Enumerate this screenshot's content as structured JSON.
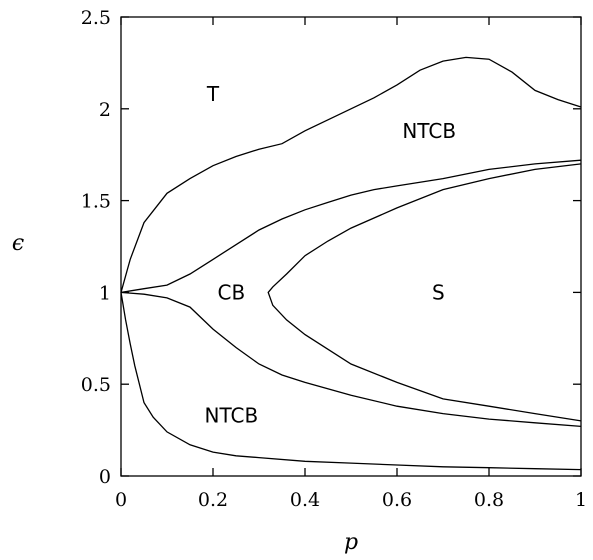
{
  "chart_data": {
    "type": "line",
    "title": "",
    "xlabel": "p",
    "ylabel": "ϵ",
    "xlim": [
      0,
      1
    ],
    "ylim": [
      0,
      2.5
    ],
    "grid": false,
    "x_ticks": [
      "0",
      "0.2",
      "0.4",
      "0.6",
      "0.8",
      "1"
    ],
    "y_ticks": [
      "0",
      "0.5",
      "1",
      "1.5",
      "2",
      "2.5"
    ],
    "x_tick_values": [
      0,
      0.2,
      0.4,
      0.6,
      0.8,
      1
    ],
    "y_tick_values": [
      0,
      0.5,
      1,
      1.5,
      2,
      2.5
    ],
    "region_labels": [
      {
        "text": "T",
        "x": 0.2,
        "y": 2.08
      },
      {
        "text": "NTCB",
        "x": 0.67,
        "y": 1.88
      },
      {
        "text": "CB",
        "x": 0.24,
        "y": 1.0
      },
      {
        "text": "S",
        "x": 0.69,
        "y": 1.0
      },
      {
        "text": "NTCB",
        "x": 0.24,
        "y": 0.33
      }
    ],
    "series": [
      {
        "x": [
          0,
          0.02,
          0.05,
          0.1,
          0.15,
          0.2,
          0.25,
          0.3,
          0.35,
          0.4,
          0.45,
          0.5,
          0.55,
          0.6,
          0.65,
          0.7,
          0.75,
          0.8,
          0.85,
          0.9,
          0.95,
          1.0
        ],
        "y": [
          1.0,
          1.18,
          1.38,
          1.54,
          1.62,
          1.69,
          1.74,
          1.78,
          1.81,
          1.88,
          1.94,
          2.0,
          2.06,
          2.13,
          2.21,
          2.26,
          2.28,
          2.27,
          2.2,
          2.1,
          2.05,
          2.01
        ]
      },
      {
        "x": [
          0,
          0.05,
          0.1,
          0.15,
          0.2,
          0.25,
          0.3,
          0.35,
          0.4,
          0.45,
          0.5,
          0.55,
          0.6,
          0.7,
          0.8,
          0.9,
          1.0
        ],
        "y": [
          1.0,
          1.02,
          1.04,
          1.1,
          1.18,
          1.26,
          1.34,
          1.4,
          1.45,
          1.49,
          1.53,
          1.56,
          1.58,
          1.62,
          1.67,
          1.7,
          1.72
        ]
      },
      {
        "x": [
          1.0,
          0.9,
          0.8,
          0.7,
          0.6,
          0.5,
          0.45,
          0.4,
          0.36,
          0.33,
          0.32,
          0.33,
          0.36,
          0.4,
          0.45,
          0.5,
          0.6,
          0.7,
          0.8,
          0.9,
          1.0
        ],
        "y": [
          1.7,
          1.67,
          1.62,
          1.56,
          1.46,
          1.35,
          1.28,
          1.2,
          1.1,
          1.03,
          1.0,
          0.93,
          0.85,
          0.77,
          0.69,
          0.61,
          0.51,
          0.42,
          0.38,
          0.34,
          0.3
        ]
      },
      {
        "x": [
          0,
          0.05,
          0.1,
          0.15,
          0.2,
          0.25,
          0.3,
          0.35,
          0.4,
          0.5,
          0.6,
          0.7,
          0.8,
          0.9,
          1.0
        ],
        "y": [
          1.0,
          0.99,
          0.97,
          0.92,
          0.8,
          0.7,
          0.61,
          0.55,
          0.51,
          0.44,
          0.38,
          0.34,
          0.31,
          0.29,
          0.27
        ]
      },
      {
        "x": [
          0,
          0.01,
          0.02,
          0.03,
          0.05,
          0.07,
          0.1,
          0.15,
          0.2,
          0.25,
          0.3,
          0.4,
          0.5,
          0.6,
          0.7,
          0.8,
          0.9,
          1.0
        ],
        "y": [
          1.0,
          0.85,
          0.72,
          0.6,
          0.4,
          0.32,
          0.24,
          0.17,
          0.13,
          0.11,
          0.1,
          0.08,
          0.07,
          0.06,
          0.05,
          0.045,
          0.04,
          0.035
        ]
      }
    ]
  }
}
